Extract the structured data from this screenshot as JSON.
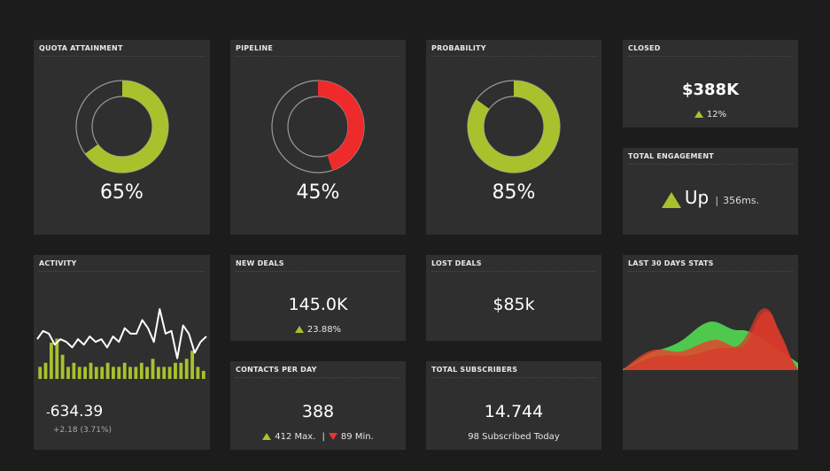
{
  "colors": {
    "green": "#a9c12d",
    "red": "#ee2a2a",
    "panel": "#2f2f2f",
    "background": "#1c1c1c"
  },
  "quota": {
    "title": "QUOTA ATTAINMENT",
    "value": "65%",
    "fraction": 0.65
  },
  "pipeline": {
    "title": "PIPELINE",
    "value": "45%",
    "fraction": 0.45
  },
  "probability": {
    "title": "PROBABILITY",
    "value": "85%",
    "fraction": 0.85
  },
  "closed": {
    "title": "CLOSED",
    "value": "$388K",
    "change": "12%",
    "trend_icon": "triangle-up-icon"
  },
  "engagement": {
    "title": "TOTAL ENGAGEMENT",
    "status": "Up",
    "separator": "|",
    "latency": "356ms.",
    "trend_icon": "triangle-up-icon"
  },
  "activity": {
    "title": "ACTIVITY",
    "value": "634.39",
    "prefix": "-",
    "change": "+2.18 (3.71%)",
    "line": [
      10,
      13,
      12,
      8,
      10,
      9,
      7,
      10,
      8,
      11,
      9,
      10,
      7,
      11,
      9,
      14,
      12,
      12,
      17,
      14,
      9,
      21,
      12,
      13,
      3,
      15,
      12,
      5,
      9,
      11
    ],
    "bars": [
      3,
      4,
      9,
      10,
      6,
      3,
      4,
      3,
      3,
      4,
      3,
      3,
      4,
      3,
      3,
      4,
      3,
      3,
      4,
      3,
      5,
      3,
      3,
      3,
      4,
      4,
      5,
      7,
      3,
      2
    ],
    "line_max": 22,
    "bar_max": 11
  },
  "new_deals": {
    "title": "NEW DEALS",
    "value": "145.0K",
    "change": "23.88%",
    "trend_icon": "triangle-up-icon"
  },
  "lost_deals": {
    "title": "LOST DEALS",
    "value": "$85k"
  },
  "contacts": {
    "title": "CONTACTS PER DAY",
    "value": "388",
    "max": "412 Max.",
    "separator": "|",
    "min": "89 Min."
  },
  "subscribers": {
    "title": "TOTAL SUBSCRIBERS",
    "value": "14.744",
    "caption": "98 Subscribed Today"
  },
  "last30": {
    "title": "LAST 30 DAYS STATS"
  }
}
